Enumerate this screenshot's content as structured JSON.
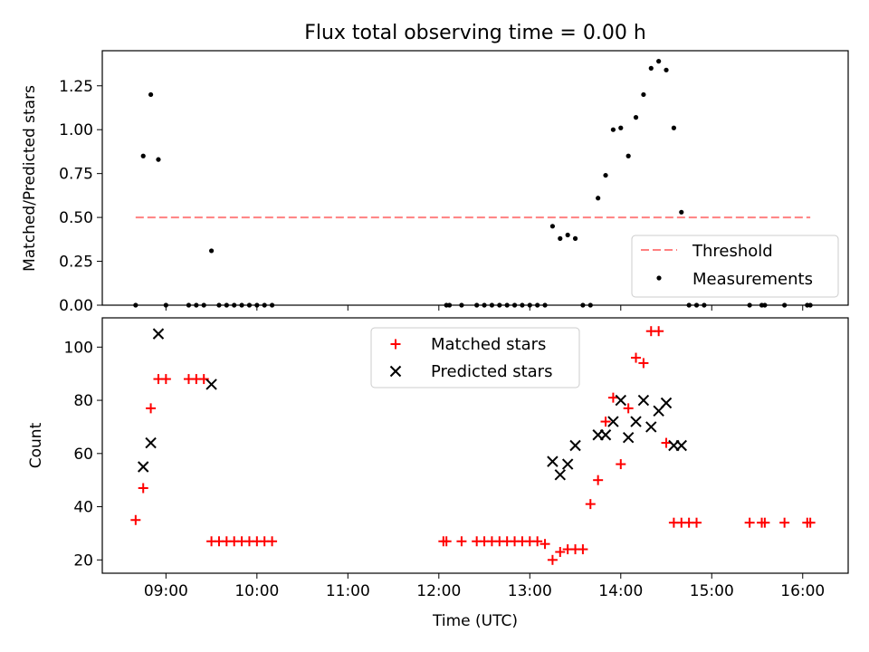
{
  "chart_data": [
    {
      "type": "scatter",
      "title": "Flux total observing time = 0.00 h",
      "ylabel": "Matched/Predicted stars",
      "xlabel": "",
      "xlim": [
        "08:18",
        "16:30"
      ],
      "ylim": [
        0,
        1.45
      ],
      "yticks": [
        "0.00",
        "0.25",
        "0.50",
        "0.75",
        "1.00",
        "1.25"
      ],
      "legend_position": "lower-right",
      "threshold": {
        "name": "Threshold",
        "value": 0.5,
        "x_start": "08:40",
        "x_end": "16:05",
        "color": "#ff8080",
        "style": "dashed"
      },
      "series": [
        {
          "name": "Measurements",
          "color": "#000000",
          "marker": "dot",
          "points": [
            [
              "08:40",
              0
            ],
            [
              "08:45",
              0.85
            ],
            [
              "08:50",
              1.2
            ],
            [
              "08:55",
              0.83
            ],
            [
              "09:00",
              0
            ],
            [
              "09:15",
              0
            ],
            [
              "09:20",
              0
            ],
            [
              "09:25",
              0
            ],
            [
              "09:30",
              0.31
            ],
            [
              "09:35",
              0
            ],
            [
              "09:40",
              0
            ],
            [
              "09:45",
              0
            ],
            [
              "09:50",
              0
            ],
            [
              "09:55",
              0
            ],
            [
              "10:00",
              0
            ],
            [
              "10:05",
              0
            ],
            [
              "10:10",
              0
            ],
            [
              "12:05",
              0
            ],
            [
              "12:07",
              0
            ],
            [
              "12:15",
              0
            ],
            [
              "12:25",
              0
            ],
            [
              "12:30",
              0
            ],
            [
              "12:35",
              0
            ],
            [
              "12:40",
              0
            ],
            [
              "12:45",
              0
            ],
            [
              "12:50",
              0
            ],
            [
              "12:55",
              0
            ],
            [
              "13:00",
              0
            ],
            [
              "13:05",
              0
            ],
            [
              "13:10",
              0
            ],
            [
              "13:15",
              0.45
            ],
            [
              "13:20",
              0.38
            ],
            [
              "13:25",
              0.4
            ],
            [
              "13:30",
              0.38
            ],
            [
              "13:35",
              0
            ],
            [
              "13:40",
              0
            ],
            [
              "13:45",
              0.61
            ],
            [
              "13:50",
              0.74
            ],
            [
              "13:55",
              1.0
            ],
            [
              "14:00",
              1.01
            ],
            [
              "14:05",
              0.85
            ],
            [
              "14:10",
              1.07
            ],
            [
              "14:15",
              1.2
            ],
            [
              "14:20",
              1.35
            ],
            [
              "14:25",
              1.39
            ],
            [
              "14:30",
              1.34
            ],
            [
              "14:35",
              1.01
            ],
            [
              "14:40",
              0.53
            ],
            [
              "14:45",
              0
            ],
            [
              "14:50",
              0
            ],
            [
              "14:55",
              0
            ],
            [
              "15:25",
              0
            ],
            [
              "15:33",
              0
            ],
            [
              "15:35",
              0
            ],
            [
              "15:48",
              0
            ],
            [
              "16:03",
              0
            ],
            [
              "16:05",
              0
            ]
          ]
        }
      ]
    },
    {
      "type": "scatter",
      "title": "",
      "xlabel": "Time (UTC)",
      "ylabel": "Count",
      "xlim": [
        "08:18",
        "16:30"
      ],
      "ylim": [
        15,
        111
      ],
      "yticks": [
        20,
        40,
        60,
        80,
        100
      ],
      "xticks": [
        "09:00",
        "10:00",
        "11:00",
        "12:00",
        "13:00",
        "14:00",
        "15:00",
        "16:00"
      ],
      "legend_position": "upper-center",
      "series": [
        {
          "name": "Matched stars",
          "color": "#ff0000",
          "marker": "plus",
          "points": [
            [
              "08:40",
              35
            ],
            [
              "08:45",
              47
            ],
            [
              "08:50",
              77
            ],
            [
              "08:55",
              88
            ],
            [
              "09:00",
              88
            ],
            [
              "09:15",
              88
            ],
            [
              "09:20",
              88
            ],
            [
              "09:25",
              88
            ],
            [
              "09:30",
              27
            ],
            [
              "09:35",
              27
            ],
            [
              "09:40",
              27
            ],
            [
              "09:45",
              27
            ],
            [
              "09:50",
              27
            ],
            [
              "09:55",
              27
            ],
            [
              "10:00",
              27
            ],
            [
              "10:05",
              27
            ],
            [
              "10:10",
              27
            ],
            [
              "12:03",
              27
            ],
            [
              "12:05",
              27
            ],
            [
              "12:15",
              27
            ],
            [
              "12:25",
              27
            ],
            [
              "12:30",
              27
            ],
            [
              "12:35",
              27
            ],
            [
              "12:40",
              27
            ],
            [
              "12:45",
              27
            ],
            [
              "12:50",
              27
            ],
            [
              "12:55",
              27
            ],
            [
              "13:00",
              27
            ],
            [
              "13:05",
              27
            ],
            [
              "13:10",
              26
            ],
            [
              "13:15",
              20
            ],
            [
              "13:20",
              23
            ],
            [
              "13:25",
              24
            ],
            [
              "13:30",
              24
            ],
            [
              "13:35",
              24
            ],
            [
              "13:40",
              41
            ],
            [
              "13:45",
              50
            ],
            [
              "13:50",
              72
            ],
            [
              "13:55",
              81
            ],
            [
              "14:00",
              56
            ],
            [
              "14:05",
              77
            ],
            [
              "14:10",
              96
            ],
            [
              "14:15",
              94
            ],
            [
              "14:20",
              106
            ],
            [
              "14:25",
              106
            ],
            [
              "14:30",
              64
            ],
            [
              "14:35",
              34
            ],
            [
              "14:40",
              34
            ],
            [
              "14:45",
              34
            ],
            [
              "14:50",
              34
            ],
            [
              "15:25",
              34
            ],
            [
              "15:33",
              34
            ],
            [
              "15:35",
              34
            ],
            [
              "15:48",
              34
            ],
            [
              "16:03",
              34
            ],
            [
              "16:05",
              34
            ]
          ]
        },
        {
          "name": "Predicted stars",
          "color": "#000000",
          "marker": "x",
          "points": [
            [
              "08:45",
              55
            ],
            [
              "08:50",
              64
            ],
            [
              "08:55",
              105
            ],
            [
              "09:30",
              86
            ],
            [
              "13:15",
              57
            ],
            [
              "13:20",
              52
            ],
            [
              "13:25",
              56
            ],
            [
              "13:30",
              63
            ],
            [
              "13:45",
              67
            ],
            [
              "13:50",
              67
            ],
            [
              "13:55",
              72
            ],
            [
              "14:00",
              80
            ],
            [
              "14:05",
              66
            ],
            [
              "14:10",
              72
            ],
            [
              "14:15",
              80
            ],
            [
              "14:20",
              70
            ],
            [
              "14:25",
              76
            ],
            [
              "14:30",
              79
            ],
            [
              "14:35",
              63
            ],
            [
              "14:40",
              63
            ]
          ]
        }
      ]
    }
  ]
}
